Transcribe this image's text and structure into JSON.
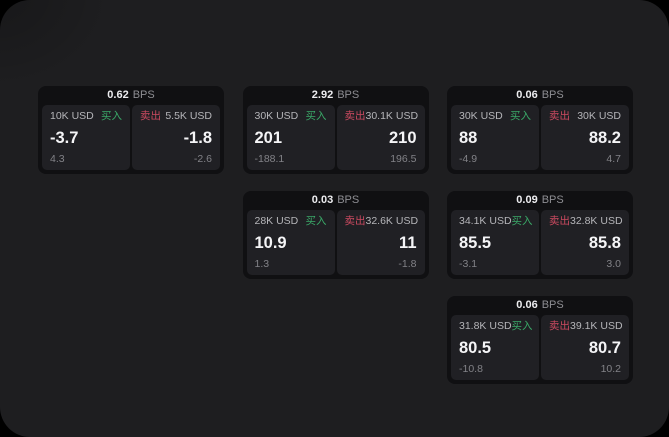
{
  "labels": {
    "buy": "买入",
    "sell": "卖出",
    "bps": "BPS"
  },
  "colors": {
    "buy": "#3aa968",
    "sell": "#cc4a60",
    "page_bg": "#1e1e20",
    "card_bg": "#101012",
    "panel_bg": "#202024"
  },
  "cards": [
    {
      "row": 1,
      "col": 1,
      "bps": "0.62",
      "buy": {
        "amount": "10K USD",
        "value": "-3.7",
        "delta": "4.3"
      },
      "sell": {
        "amount": "5.5K USD",
        "value": "-1.8",
        "delta": "-2.6"
      }
    },
    {
      "row": 1,
      "col": 2,
      "bps": "2.92",
      "buy": {
        "amount": "30K USD",
        "value": "201",
        "delta": "-188.1"
      },
      "sell": {
        "amount": "30.1K USD",
        "value": "210",
        "delta": "196.5"
      }
    },
    {
      "row": 1,
      "col": 3,
      "bps": "0.06",
      "buy": {
        "amount": "30K USD",
        "value": "88",
        "delta": "-4.9"
      },
      "sell": {
        "amount": "30K USD",
        "value": "88.2",
        "delta": "4.7"
      }
    },
    {
      "row": 2,
      "col": 2,
      "bps": "0.03",
      "buy": {
        "amount": "28K USD",
        "value": "10.9",
        "delta": "1.3"
      },
      "sell": {
        "amount": "32.6K USD",
        "value": "11",
        "delta": "-1.8"
      }
    },
    {
      "row": 2,
      "col": 3,
      "bps": "0.09",
      "buy": {
        "amount": "34.1K USD",
        "value": "85.5",
        "delta": "-3.1"
      },
      "sell": {
        "amount": "32.8K USD",
        "value": "85.8",
        "delta": "3.0"
      }
    },
    {
      "row": 3,
      "col": 3,
      "bps": "0.06",
      "buy": {
        "amount": "31.8K USD",
        "value": "80.5",
        "delta": "-10.8"
      },
      "sell": {
        "amount": "39.1K USD",
        "value": "80.7",
        "delta": "10.2"
      }
    }
  ]
}
